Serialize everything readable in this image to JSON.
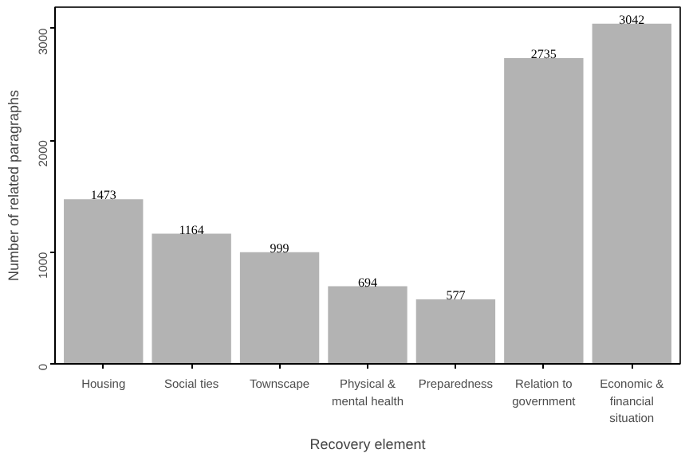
{
  "chart_data": {
    "type": "bar",
    "xlabel": "Recovery element",
    "ylabel": "Number of related paragraphs",
    "categories": [
      "Housing",
      "Social ties",
      "Townscape",
      "Physical &\nmental health",
      "Preparedness",
      "Relation to\ngovernment",
      "Economic &\nfinancial\nsituation"
    ],
    "values": [
      1473,
      1164,
      999,
      694,
      577,
      2735,
      3042
    ],
    "color": "#b3b3b3",
    "ylim": [
      0,
      3190
    ],
    "yticks": [
      0,
      1000,
      2000,
      3000
    ],
    "grid": false,
    "data_labels": true
  }
}
